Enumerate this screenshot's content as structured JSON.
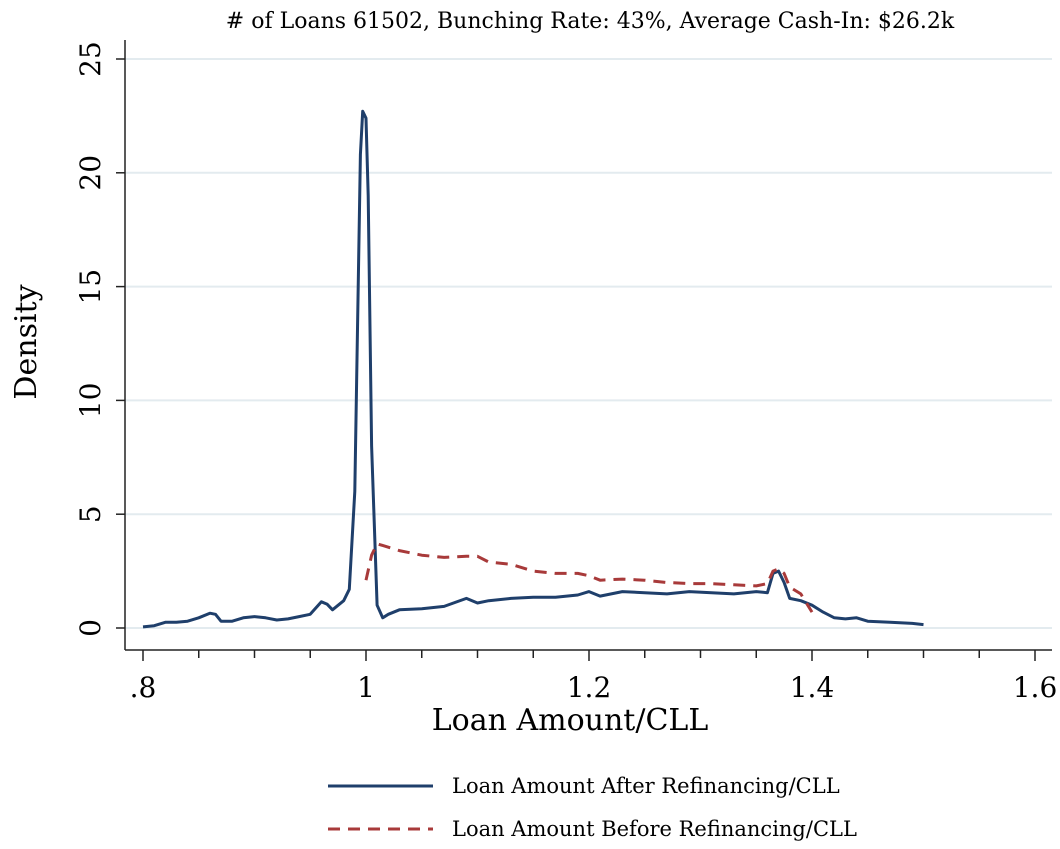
{
  "chart_data": {
    "type": "line",
    "title": "# of Loans 61502, Bunching Rate: 43%, Average Cash-In: $26.2k",
    "xlabel": "Loan Amount/CLL",
    "ylabel": "Density",
    "xlim": [
      0.8,
      1.6
    ],
    "ylim": [
      0,
      25
    ],
    "x_ticks": [
      0.8,
      1.0,
      1.2,
      1.4,
      1.6
    ],
    "x_tick_labels": [
      ".8",
      "1",
      "1.2",
      "1.4",
      "1.6"
    ],
    "y_ticks": [
      0,
      5,
      10,
      15,
      20,
      25
    ],
    "y_tick_labels": [
      "0",
      "5",
      "10",
      "15",
      "20",
      "25"
    ],
    "grid": "horizontal",
    "legend_position": "bottom",
    "series": [
      {
        "name": "Loan Amount After Refinancing/CLL",
        "color": "#1f3f6b",
        "dash": "solid",
        "x": [
          0.8,
          0.81,
          0.82,
          0.83,
          0.84,
          0.85,
          0.86,
          0.865,
          0.87,
          0.88,
          0.89,
          0.9,
          0.91,
          0.92,
          0.93,
          0.94,
          0.95,
          0.96,
          0.965,
          0.97,
          0.98,
          0.985,
          0.99,
          0.995,
          0.997,
          1.0,
          1.002,
          1.005,
          1.01,
          1.015,
          1.02,
          1.03,
          1.05,
          1.07,
          1.09,
          1.1,
          1.11,
          1.13,
          1.15,
          1.17,
          1.19,
          1.2,
          1.21,
          1.23,
          1.25,
          1.27,
          1.29,
          1.31,
          1.33,
          1.35,
          1.36,
          1.365,
          1.37,
          1.375,
          1.38,
          1.39,
          1.4,
          1.41,
          1.42,
          1.43,
          1.44,
          1.45,
          1.47,
          1.49,
          1.5
        ],
        "y": [
          0.05,
          0.1,
          0.25,
          0.25,
          0.3,
          0.45,
          0.65,
          0.6,
          0.3,
          0.3,
          0.45,
          0.5,
          0.45,
          0.35,
          0.4,
          0.5,
          0.6,
          1.15,
          1.05,
          0.8,
          1.2,
          1.7,
          6.0,
          20.8,
          22.7,
          22.4,
          19.0,
          8.0,
          1.0,
          0.45,
          0.6,
          0.8,
          0.85,
          0.95,
          1.3,
          1.1,
          1.2,
          1.3,
          1.35,
          1.35,
          1.45,
          1.6,
          1.4,
          1.6,
          1.55,
          1.5,
          1.6,
          1.55,
          1.5,
          1.6,
          1.55,
          2.4,
          2.5,
          2.0,
          1.3,
          1.2,
          1.0,
          0.7,
          0.45,
          0.4,
          0.45,
          0.3,
          0.25,
          0.2,
          0.15
        ]
      },
      {
        "name": "Loan Amount Before Refinancing/CLL",
        "color": "#a83a3a",
        "dash": "dashed",
        "x": [
          1.0,
          1.005,
          1.01,
          1.02,
          1.03,
          1.05,
          1.07,
          1.09,
          1.1,
          1.11,
          1.13,
          1.15,
          1.17,
          1.19,
          1.2,
          1.21,
          1.23,
          1.25,
          1.27,
          1.29,
          1.31,
          1.33,
          1.35,
          1.36,
          1.365,
          1.37,
          1.375,
          1.38,
          1.39,
          1.4
        ],
        "y": [
          2.1,
          3.2,
          3.7,
          3.55,
          3.4,
          3.2,
          3.1,
          3.15,
          3.15,
          2.9,
          2.8,
          2.5,
          2.4,
          2.4,
          2.3,
          2.1,
          2.15,
          2.1,
          2.0,
          1.95,
          1.95,
          1.9,
          1.85,
          1.95,
          2.5,
          2.6,
          2.4,
          1.8,
          1.5,
          0.7
        ]
      }
    ]
  }
}
